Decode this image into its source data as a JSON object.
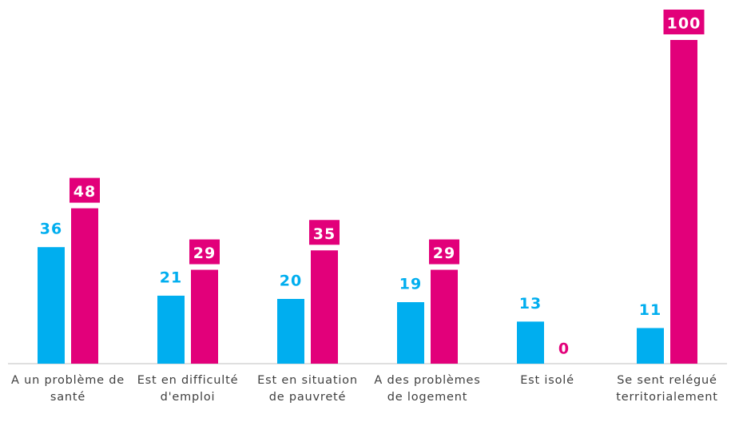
{
  "chart_data": {
    "type": "bar",
    "categories": [
      "A un problème de santé",
      "Est en difficulté d'emploi",
      "Est en situation de pauvreté",
      "A des problèmes de logement",
      "Est isolé",
      "Se sent relégué territorialement"
    ],
    "series": [
      {
        "color": "#00aeef",
        "values": [
          36,
          21,
          20,
          19,
          13,
          11
        ]
      },
      {
        "color": "#e2007a",
        "values": [
          48,
          29,
          35,
          29,
          0,
          100
        ]
      }
    ],
    "ylim": [
      0,
      100
    ]
  }
}
